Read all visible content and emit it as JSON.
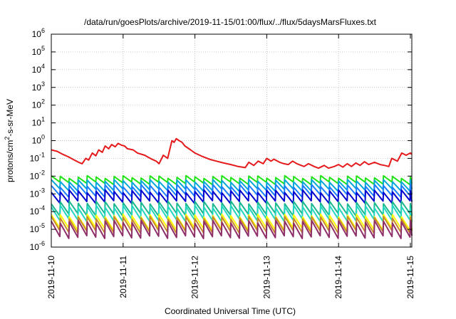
{
  "chart_data": {
    "type": "line",
    "title": "/data/run/goesPlots/archive/2019-11-15/01:00/flux/../flux/5daysMarsFluxes.txt",
    "xlabel": "Coordinated Universal Time (UTC)",
    "ylabel": "protons/cm²-s-sr-MeV",
    "yscale": "log",
    "ylim": [
      1e-06,
      1000000.0
    ],
    "xlim": [
      "2019-11-10",
      "2019-11-15 00:30"
    ],
    "grid": true,
    "x_ticks": [
      "2019-11-10",
      "2019-11-11",
      "2019-11-12",
      "2019-11-13",
      "2019-11-14",
      "2019-11-15"
    ],
    "y_ticks": [
      {
        "base": "10",
        "exp": "-6"
      },
      {
        "base": "10",
        "exp": "-5"
      },
      {
        "base": "10",
        "exp": "-4"
      },
      {
        "base": "10",
        "exp": "-3"
      },
      {
        "base": "10",
        "exp": "-2"
      },
      {
        "base": "10",
        "exp": "-1"
      },
      {
        "base": "10",
        "exp": "0"
      },
      {
        "base": "10",
        "exp": "1"
      },
      {
        "base": "10",
        "exp": "2"
      },
      {
        "base": "10",
        "exp": "3"
      },
      {
        "base": "10",
        "exp": "4"
      },
      {
        "base": "10",
        "exp": "5"
      },
      {
        "base": "10",
        "exp": "6"
      }
    ],
    "series": [
      {
        "color": "#e41a1c",
        "x": [
          0,
          0.08,
          0.16,
          0.24,
          0.3,
          0.38,
          0.43,
          0.48,
          0.52,
          0.57,
          0.62,
          0.66,
          0.71,
          0.75,
          0.8,
          0.84,
          0.89,
          0.93,
          0.98,
          1.02,
          1.06,
          1.14,
          1.2,
          1.3,
          1.4,
          1.46,
          1.5,
          1.56,
          1.62,
          1.68,
          1.71,
          1.74,
          1.78,
          1.82,
          1.86,
          1.94,
          2.0,
          2.1,
          2.2,
          2.3,
          2.4,
          2.5,
          2.6,
          2.7,
          2.75,
          2.82,
          2.88,
          2.95,
          3.0,
          3.06,
          3.1,
          3.18,
          3.24,
          3.3,
          3.36,
          3.42,
          3.48,
          3.52,
          3.58,
          3.66,
          3.72,
          3.8,
          3.86,
          3.94,
          4.0,
          4.06,
          4.12,
          4.18,
          4.24,
          4.3,
          4.36,
          4.42,
          4.5,
          4.58,
          4.64,
          4.7,
          4.74,
          4.82,
          4.88,
          4.94,
          5.0,
          5.02
        ],
        "y": [
          0.3,
          0.25,
          0.17,
          0.12,
          0.09,
          0.06,
          0.05,
          0.1,
          0.08,
          0.2,
          0.14,
          0.3,
          0.22,
          0.5,
          0.35,
          0.6,
          0.45,
          0.7,
          0.55,
          0.5,
          0.35,
          0.3,
          0.2,
          0.15,
          0.09,
          0.07,
          0.05,
          0.15,
          0.1,
          1.0,
          0.8,
          1.3,
          1.0,
          0.8,
          0.5,
          0.3,
          0.2,
          0.13,
          0.09,
          0.07,
          0.055,
          0.045,
          0.035,
          0.03,
          0.06,
          0.04,
          0.07,
          0.05,
          0.1,
          0.07,
          0.09,
          0.06,
          0.05,
          0.045,
          0.07,
          0.05,
          0.04,
          0.035,
          0.05,
          0.035,
          0.028,
          0.04,
          0.028,
          0.035,
          0.045,
          0.032,
          0.05,
          0.035,
          0.055,
          0.04,
          0.065,
          0.045,
          0.06,
          0.045,
          0.04,
          0.035,
          0.1,
          0.07,
          0.2,
          0.15,
          0.2,
          0.17
        ]
      },
      {
        "color": "#1fe314",
        "level": 0.006,
        "amp": 1.5
      },
      {
        "color": "#00a8d8",
        "level": 0.003,
        "amp": 1.8
      },
      {
        "color": "#1a7fff",
        "level": 0.0015,
        "amp": 1.9
      },
      {
        "color": "#0000d0",
        "level": 0.0007,
        "amp": 2.0
      },
      {
        "color": "#1ab88e",
        "level": 0.00015,
        "amp": 2.2
      },
      {
        "color": "#22d6c0",
        "level": 8e-05,
        "amp": 2.4
      },
      {
        "color": "#ffff00",
        "level": 2.5e-05,
        "amp": 2.4
      },
      {
        "color": "#c98a2e",
        "level": 1.8e-05,
        "amp": 2.5
      },
      {
        "color": "#8f2f6a",
        "level": 1e-05,
        "amp": 2.7
      }
    ]
  }
}
